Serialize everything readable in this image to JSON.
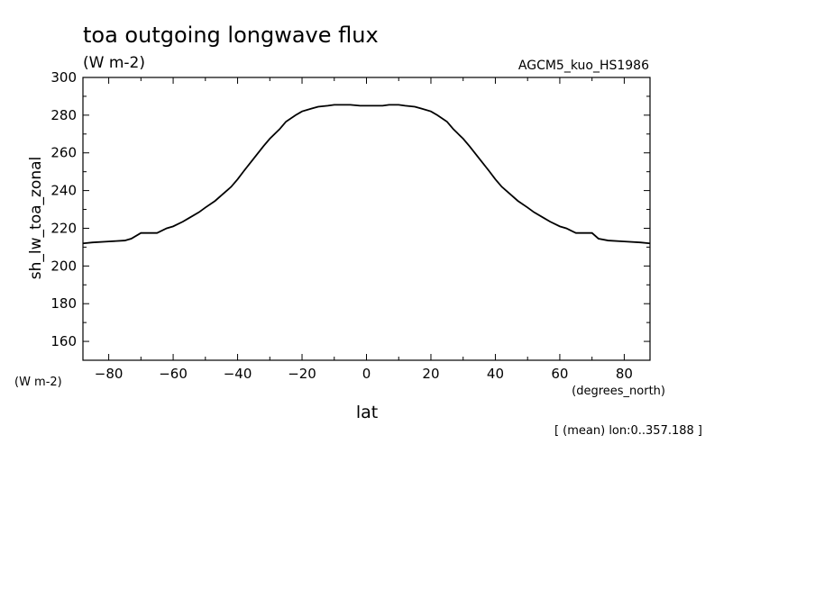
{
  "chart_data": {
    "type": "line",
    "title": "toa outgoing longwave flux",
    "subtitle": "(W m-2)",
    "dataset": "AGCM5_kuo_HS1986",
    "xlabel": "lat",
    "ylabel": "sh_lw_toa_zonal",
    "yunits": "(W m-2)",
    "xunits": "(degrees_north)",
    "note": "[ (mean) lon:0..357.188 ]",
    "xlim": [
      -88,
      88
    ],
    "ylim": [
      150,
      300
    ],
    "xticks": [
      -80,
      -60,
      -40,
      -20,
      0,
      20,
      40,
      60,
      80
    ],
    "yticks": [
      160,
      180,
      200,
      220,
      240,
      260,
      280,
      300
    ],
    "grid": false,
    "series": [
      {
        "x": [
          -88,
          -85,
          -80,
          -75,
          -73,
          -70,
          -65,
          -62,
          -60,
          -57,
          -55,
          -52,
          -50,
          -47,
          -45,
          -42,
          -40,
          -38,
          -35,
          -32,
          -30,
          -27,
          -25,
          -22,
          -20,
          -17,
          -15,
          -12,
          -10,
          -7,
          -5,
          -2,
          0,
          2,
          5,
          7,
          10,
          12,
          15,
          17,
          20,
          22,
          25,
          27,
          30,
          32,
          35,
          38,
          40,
          42,
          45,
          47,
          50,
          52,
          55,
          57,
          60,
          62,
          65,
          70,
          72,
          75,
          80,
          85,
          88
        ],
        "y": [
          212,
          212.5,
          213,
          213.5,
          214.5,
          217.5,
          217.5,
          220,
          221,
          223.5,
          225.5,
          228.5,
          231,
          234.5,
          237.5,
          242,
          246,
          250.5,
          257,
          263.5,
          267.5,
          272.5,
          276.5,
          280,
          282,
          283.5,
          284.5,
          285,
          285.5,
          285.5,
          285.5,
          285,
          285,
          285,
          285,
          285.5,
          285.5,
          285,
          284.5,
          283.5,
          282,
          280,
          276.5,
          272.5,
          267.5,
          263.5,
          257,
          250.5,
          246,
          242,
          237.5,
          234.5,
          231,
          228.5,
          225.5,
          223.5,
          221,
          220,
          217.5,
          217.5,
          214.5,
          213.5,
          213,
          212.5,
          212
        ]
      }
    ]
  }
}
